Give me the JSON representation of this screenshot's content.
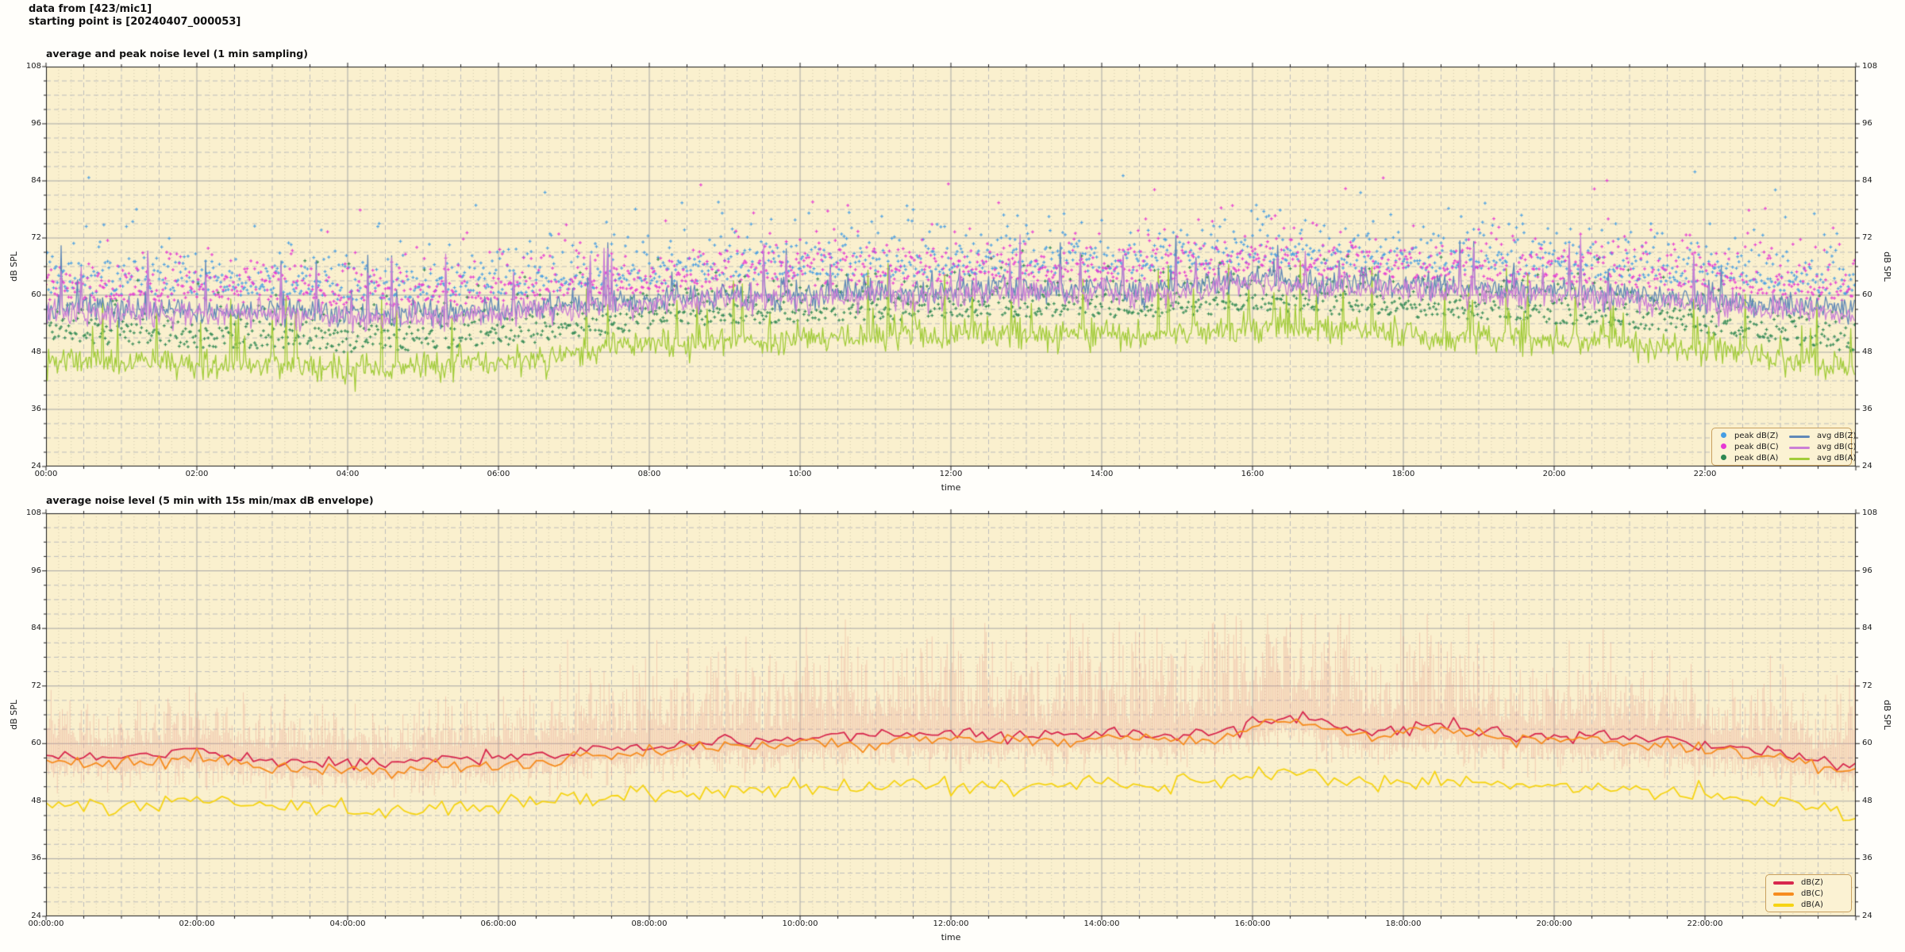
{
  "header": {
    "line1": "data from [423/mic1]",
    "line2": "starting point is [20240407_000053]"
  },
  "style": {
    "figure_bg": "#fffefa",
    "plot_bg": "#faf0ce",
    "grid_major": "#a6a6a6",
    "grid_minor": "#bdbdbd",
    "grid_micro": "rgba(180,175,150,0.55)",
    "axis_color": "#1a1a1a",
    "legend_bg": "#fbf2d3",
    "legend_edge": "#c9a05e"
  },
  "charts": [
    {
      "title": "average and peak noise level (1 min sampling)",
      "xlabel": "time",
      "ylabel": "dB SPL",
      "yticks": [
        108,
        96,
        84,
        72,
        60,
        48,
        36,
        24
      ],
      "xtick_hours": [
        0,
        2,
        4,
        6,
        8,
        10,
        12,
        14,
        16,
        18,
        20,
        22
      ],
      "xtick_labels": [
        "00:00",
        "02:00",
        "04:00",
        "06:00",
        "08:00",
        "10:00",
        "12:00",
        "14:00",
        "16:00",
        "18:00",
        "20:00",
        "22:00"
      ],
      "legend_markers": [
        {
          "label": "peak dB(Z)",
          "color": "#459de4"
        },
        {
          "label": "peak dB(C)",
          "color": "#e638d4"
        },
        {
          "label": "peak dB(A)",
          "color": "#2e8752"
        }
      ],
      "legend_lines": [
        {
          "label": "avg dB(Z)",
          "color": "#6088b8"
        },
        {
          "label": "avg dB(C)",
          "color": "#cb7fd6"
        },
        {
          "label": "avg dB(A)",
          "color": "#a2cc3a"
        }
      ]
    },
    {
      "title": "average noise level (5 min with 15s min/max dB envelope)",
      "xlabel": "time",
      "ylabel": "dB SPL",
      "yticks": [
        108,
        96,
        84,
        72,
        60,
        48,
        36,
        24
      ],
      "xtick_hours": [
        0,
        2,
        4,
        6,
        8,
        10,
        12,
        14,
        16,
        18,
        20,
        22
      ],
      "xtick_labels": [
        "00:00:00",
        "02:00:00",
        "04:00:00",
        "06:00:00",
        "08:00:00",
        "10:00:00",
        "12:00:00",
        "14:00:00",
        "16:00:00",
        "18:00:00",
        "20:00:00",
        "22:00:00"
      ],
      "legend_lines": [
        {
          "label": "dB(Z)",
          "color": "#d8284e"
        },
        {
          "label": "dB(C)",
          "color": "#f68c1f"
        },
        {
          "label": "dB(A)",
          "color": "#f6d414"
        }
      ]
    }
  ],
  "chart_data": [
    {
      "type": "line+scatter",
      "title": "average and peak noise level (1 min sampling)",
      "xlabel": "time",
      "ylabel": "dB SPL",
      "xlim_hours": [
        0,
        24
      ],
      "ylim": [
        24,
        108
      ],
      "sampling_minutes": 1,
      "trend_step_hours": 0.5,
      "lines": [
        {
          "name": "avg dB(Z)",
          "color": "#6088b8",
          "sigma": 1.3,
          "trend": [
            57.5,
            57.5,
            57,
            57,
            57,
            56.5,
            57,
            56.5,
            56,
            56,
            56.5,
            56.5,
            57,
            57.5,
            58,
            58.5,
            59,
            59.5,
            60,
            60,
            60.5,
            60.5,
            61,
            60.5,
            61,
            61.5,
            61.5,
            61,
            61.5,
            61,
            61.5,
            62.5,
            64,
            63,
            62,
            62.5,
            62,
            61.5,
            61.5,
            61,
            61,
            60.5,
            60,
            59.5,
            59,
            58.5,
            58,
            57.5,
            57
          ]
        },
        {
          "name": "avg dB(C)",
          "color": "#cb7fd6",
          "sigma": 1.3,
          "trend": [
            56.5,
            56.5,
            56,
            56,
            56,
            55.5,
            56,
            55.5,
            55,
            55,
            55.5,
            55.5,
            56,
            56.5,
            57,
            57.5,
            58,
            58.5,
            59,
            59,
            59.5,
            59.5,
            60,
            59.5,
            60,
            60.5,
            60.5,
            60,
            60.5,
            60,
            60.5,
            61.5,
            63,
            62,
            61,
            61.5,
            61,
            60.5,
            60.5,
            60,
            60,
            59.5,
            59,
            58.5,
            58,
            57.5,
            57,
            56.5,
            56
          ]
        },
        {
          "name": "avg dB(A)",
          "color": "#a2cc3a",
          "sigma": 1.5,
          "trend": [
            47,
            46.5,
            46,
            46,
            45.5,
            45,
            45.5,
            45,
            44.5,
            44.5,
            45,
            45.5,
            46,
            46.5,
            47.5,
            48.5,
            49.5,
            50,
            50.5,
            50.5,
            51,
            51,
            51.5,
            51,
            51.5,
            52,
            52,
            51.5,
            52,
            51.5,
            52,
            52.5,
            53.5,
            53,
            52.5,
            52.5,
            52,
            51.5,
            51.5,
            51,
            50.5,
            50,
            49.5,
            49,
            48.5,
            47.5,
            46.5,
            45.5,
            44.5
          ]
        }
      ],
      "shared_events": {
        "probability": 0.04,
        "amp_min": 3,
        "amp_max": 12
      },
      "green_events": {
        "probability": 0.05,
        "amp_min": 3,
        "amp_max": 14
      },
      "scatter": [
        {
          "name": "peak dB(Z)",
          "color": "#459de4",
          "base_line": 0,
          "offset": 3.0,
          "spread": 5.0,
          "rare_p": 0.03,
          "rare_amp": 16,
          "cap": 93
        },
        {
          "name": "peak dB(C)",
          "color": "#e638d4",
          "base_line": 1,
          "offset": 2.5,
          "spread": 4.8,
          "rare_p": 0.035,
          "rare_amp": 15,
          "cap": 90
        },
        {
          "name": "peak dB(A)",
          "color": "#2e8752",
          "base_line": 2,
          "offset": 3.5,
          "spread": 4.0,
          "rare_p": 0.02,
          "rare_amp": 12,
          "cap": 84
        }
      ]
    },
    {
      "type": "line+envelope",
      "title": "average noise level (5 min with 15s min/max dB envelope)",
      "xlabel": "time",
      "ylabel": "dB SPL",
      "xlim_hours": [
        0,
        24
      ],
      "ylim": [
        24,
        108
      ],
      "sampling_minutes": 5,
      "envelope_sampling_seconds": 15,
      "trend_step_hours": 0.5,
      "lines": [
        {
          "name": "dB(Z)",
          "color": "#d8284e",
          "sigma": 0.7,
          "trend": [
            57.5,
            57.5,
            57,
            57.5,
            58.5,
            57.5,
            56.5,
            56,
            56,
            55.5,
            56.5,
            57,
            57,
            57.5,
            58.5,
            59,
            59.5,
            60,
            60.5,
            60.5,
            61,
            61,
            61.5,
            62,
            62,
            61.5,
            62,
            61.5,
            62.5,
            62,
            62,
            62.5,
            64.5,
            66,
            64,
            62.5,
            63,
            64,
            62.5,
            62,
            61.5,
            61.5,
            61,
            60.5,
            60,
            59,
            58,
            56.5,
            55.5
          ]
        },
        {
          "name": "dB(C)",
          "color": "#f68c1f",
          "sigma": 0.7,
          "trend": [
            56,
            56,
            55.5,
            56,
            57,
            56,
            55,
            54.5,
            54.5,
            54,
            55,
            55.5,
            55.5,
            56,
            57,
            57.5,
            58.5,
            59,
            59.5,
            59.5,
            60,
            60,
            60.5,
            61,
            61,
            60.5,
            61,
            60.5,
            61.5,
            61,
            61,
            61.5,
            63.5,
            65,
            63,
            61.5,
            62,
            63,
            61.5,
            61,
            60.5,
            60.5,
            60,
            59.5,
            58.5,
            57.5,
            56.5,
            55,
            54
          ]
        },
        {
          "name": "dB(A)",
          "color": "#f6d414",
          "sigma": 0.9,
          "trend": [
            48,
            47.5,
            47,
            47.5,
            48.5,
            47.5,
            47,
            46.5,
            46,
            46,
            46.5,
            47,
            47,
            47.5,
            48.5,
            49,
            49.5,
            50,
            50.5,
            50.5,
            51,
            50.5,
            51,
            51.5,
            51,
            51.5,
            51,
            51.5,
            52,
            51.5,
            51.5,
            52,
            53,
            54,
            52.5,
            52,
            52.5,
            52,
            51.5,
            51.5,
            51,
            51,
            50.5,
            50,
            49.5,
            48.5,
            47.5,
            46.5,
            45.5
          ]
        }
      ],
      "envelope": {
        "around_line": 0,
        "color": "rgba(233,150,138,0.40)",
        "up_spread": [
          4.5,
          4.5,
          4.5,
          4.5,
          5,
          4.5,
          4.5,
          4.5,
          4.5,
          4.5,
          5,
          5,
          5.5,
          6,
          6.5,
          7,
          7.5,
          8,
          8,
          8.5,
          9,
          9,
          9.5,
          10,
          10,
          10,
          10,
          10,
          10,
          10,
          10.5,
          11,
          11,
          10.5,
          10.5,
          10.5,
          10,
          9.5,
          9,
          8.5,
          8,
          7.5,
          7,
          6.5,
          6.5,
          6,
          6,
          6,
          6
        ],
        "up_base": 2.0,
        "down_base": 1.6,
        "down_spread": 2.4,
        "cap": 87
      }
    }
  ],
  "seed": 42
}
